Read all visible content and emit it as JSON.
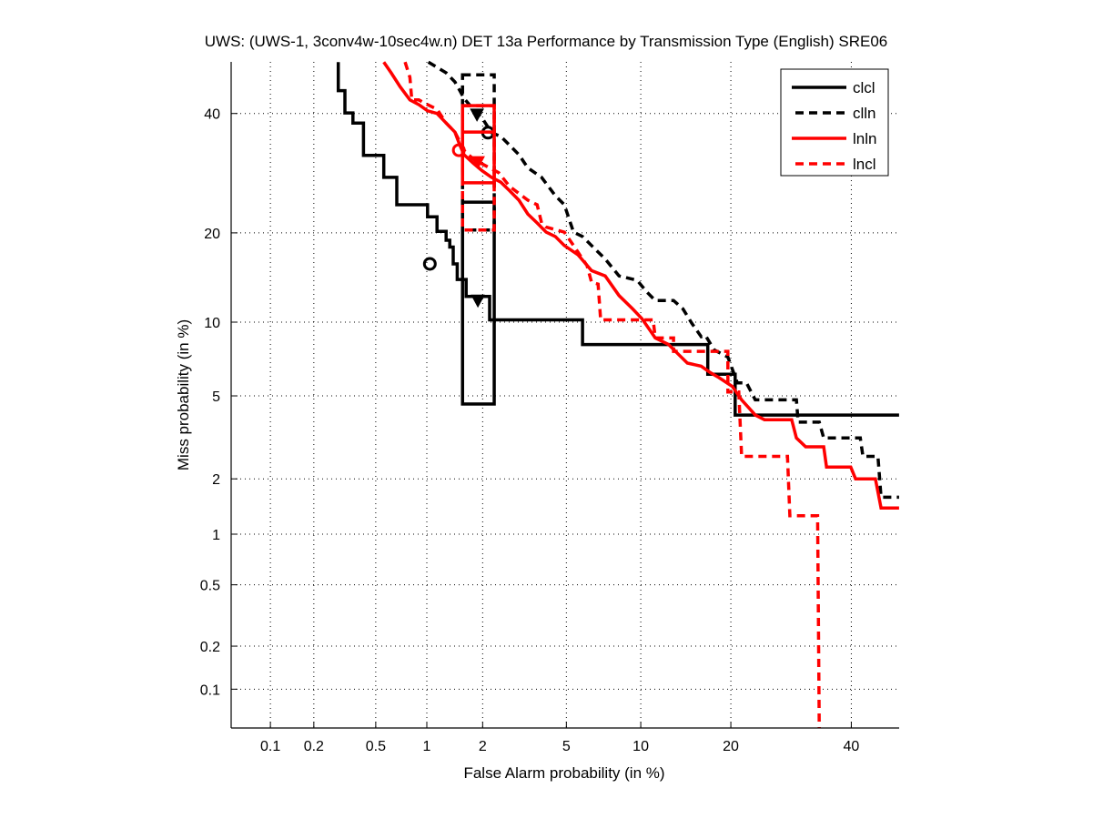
{
  "chart_data": {
    "type": "line",
    "subtype": "DET curve (normal deviate scale)",
    "title": "UWS: (UWS-1, 3conv4w-10sec4w.n) DET 13a Performance by Transmission Type (English) SRE06",
    "xlabel": "False Alarm probability (in %)",
    "ylabel": "Miss probability (in %)",
    "xlim": [
      0.05,
      49.2
    ],
    "ylim": [
      0.05,
      50
    ],
    "x_ticks": [
      0.1,
      0.2,
      0.5,
      1,
      2,
      5,
      10,
      20,
      40
    ],
    "x_tick_labels": [
      "0.1",
      "0.2",
      "0.5",
      "1",
      "2",
      "5",
      "10",
      "20",
      "40"
    ],
    "y_ticks": [
      0.1,
      0.2,
      0.5,
      1,
      2,
      5,
      10,
      20,
      40
    ],
    "y_tick_labels": [
      "0.1",
      "0.2",
      "0.5",
      "1",
      "2",
      "5",
      "10",
      "20",
      "40"
    ],
    "grid": true,
    "legend_position": "top-right",
    "colors": {
      "black": "#000000",
      "red": "#ff0000"
    },
    "series": [
      {
        "name": "clcl",
        "color": "#000000",
        "dash": false,
        "x": [
          0.29,
          0.29,
          0.32,
          0.32,
          0.36,
          0.36,
          0.42,
          0.42,
          0.56,
          0.56,
          0.67,
          0.67,
          1.01,
          1.01,
          1.14,
          1.14,
          1.28,
          1.28,
          1.34,
          1.34,
          1.4,
          1.4,
          1.47,
          1.47,
          1.64,
          1.64,
          1.87,
          2.17,
          2.17,
          5.87,
          5.87,
          17.0,
          17.0,
          20.6,
          20.6,
          49.2
        ],
        "y": [
          50,
          44.4,
          44.4,
          40.1,
          40.1,
          38.2,
          38.2,
          32.3,
          32.3,
          28.5,
          28.5,
          24.1,
          24.1,
          22.3,
          22.3,
          20.2,
          20.2,
          19.0,
          19.0,
          18.1,
          18.1,
          16.0,
          16.0,
          14.2,
          14.2,
          12.4,
          12.4,
          12.4,
          10.2,
          10.2,
          8.2,
          8.2,
          6.2,
          6.2,
          4.1,
          4.1
        ],
        "markers": [
          {
            "type": "circle",
            "x": 1.04,
            "y": 16.0
          },
          {
            "type": "triangle",
            "x": 1.89,
            "y": 12.0
          }
        ],
        "conf_box": {
          "x": [
            1.57,
            2.29
          ],
          "y": [
            4.6,
            24.5
          ]
        }
      },
      {
        "name": "clln",
        "color": "#000000",
        "dash": true,
        "x": [
          1.02,
          1.28,
          1.43,
          1.52,
          1.6,
          1.79,
          1.99,
          2.22,
          2.47,
          2.73,
          3.03,
          3.34,
          3.87,
          4.47,
          4.9,
          5.37,
          5.87,
          6.4,
          7.28,
          8.26,
          9.7,
          10.5,
          11.3,
          13.1,
          14.1,
          15.1,
          16.2,
          16.7,
          17.8,
          19.6,
          20.9,
          22.2,
          23.5,
          30.1,
          30.4,
          34.1,
          34.9,
          41.7,
          42.2,
          45.1,
          45.7,
          49.2
        ],
        "y": [
          50,
          47.9,
          46.1,
          44.4,
          42.9,
          40.8,
          39.1,
          36.4,
          35.7,
          34.1,
          32.4,
          30.1,
          28.5,
          25.5,
          24.1,
          20.1,
          19.5,
          18.3,
          16.6,
          14.6,
          14.1,
          12.9,
          12.0,
          12.0,
          11.2,
          9.9,
          8.8,
          8.9,
          7.8,
          7.3,
          5.7,
          5.7,
          4.8,
          4.8,
          3.8,
          3.8,
          3.2,
          3.2,
          2.6,
          2.6,
          1.6,
          1.6
        ],
        "markers": [
          {
            "type": "triangle",
            "x": 1.87,
            "y": 39.8
          },
          {
            "type": "circle",
            "x": 2.13,
            "y": 36.4
          }
        ],
        "conf_box": {
          "x": [
            1.57,
            2.29
          ],
          "y": [
            20.4,
            47.5
          ]
        }
      },
      {
        "name": "lnln",
        "color": "#ff0000",
        "dash": false,
        "x": [
          0.56,
          0.62,
          0.7,
          0.8,
          0.9,
          1.01,
          1.14,
          1.28,
          1.43,
          1.52,
          1.6,
          1.79,
          1.99,
          2.22,
          2.47,
          2.73,
          3.03,
          3.34,
          3.69,
          4.06,
          4.47,
          4.9,
          5.62,
          6.4,
          7.28,
          8.26,
          9.32,
          10.1,
          10.9,
          11.3,
          12.6,
          13.6,
          14.6,
          16.2,
          17.3,
          18.4,
          20.2,
          21.5,
          23.5,
          24.9,
          29.3,
          30.1,
          31.7,
          34.9,
          35.4,
          39.9,
          40.8,
          44.6,
          45.7,
          49.2
        ],
        "y": [
          50,
          47.9,
          45.2,
          42.6,
          41.7,
          40.5,
          40.0,
          38.2,
          36.5,
          34.1,
          32.4,
          30.9,
          29.6,
          28.5,
          27.7,
          26.3,
          24.8,
          22.7,
          21.4,
          20.1,
          19.5,
          18.3,
          17.1,
          15.2,
          14.6,
          12.5,
          11.2,
          10.3,
          9.2,
          8.7,
          8.2,
          7.5,
          6.9,
          6.7,
          6.3,
          6.0,
          5.5,
          4.8,
          4.1,
          3.9,
          3.9,
          3.2,
          2.9,
          2.9,
          2.3,
          2.3,
          2.0,
          2.0,
          1.4,
          1.4
        ],
        "markers": [
          {
            "type": "circle",
            "x": 1.5,
            "y": 33.2
          },
          {
            "type": "triangle",
            "x": 1.89,
            "y": 31.1
          }
        ],
        "conf_box": {
          "x": [
            1.57,
            2.29
          ],
          "y": [
            27.6,
            41.5
          ],
          "inner_y": 36.5
        }
      },
      {
        "name": "lncl",
        "color": "#ff0000",
        "dash": true,
        "x": [
          0.75,
          0.8,
          0.82,
          0.9,
          1.01,
          1.14,
          1.28,
          1.43,
          1.6,
          1.79,
          2.41,
          2.73,
          3.34,
          3.69,
          3.87,
          4.06,
          4.9,
          5.37,
          6.13,
          6.4,
          6.81,
          6.98,
          9.7,
          11.1,
          11.3,
          13.1,
          13.1,
          19.6,
          19.6,
          21.1,
          21.5,
          28.6,
          29.0,
          33.8,
          34.1
        ],
        "y": [
          50,
          47.0,
          42.6,
          42.6,
          41.7,
          40.8,
          38.2,
          36.5,
          33.2,
          31.6,
          29.3,
          27.0,
          24.8,
          24.1,
          21.4,
          20.8,
          20.1,
          18.3,
          15.8,
          13.9,
          13.7,
          10.2,
          10.2,
          10.2,
          8.7,
          8.7,
          7.7,
          7.7,
          5.2,
          5.2,
          2.6,
          2.6,
          1.27,
          1.27,
          0.052
        ],
        "markers": [],
        "conf_box": {
          "x": [
            1.57,
            2.29
          ],
          "y": [
            20.4,
            41.5
          ]
        }
      }
    ]
  }
}
